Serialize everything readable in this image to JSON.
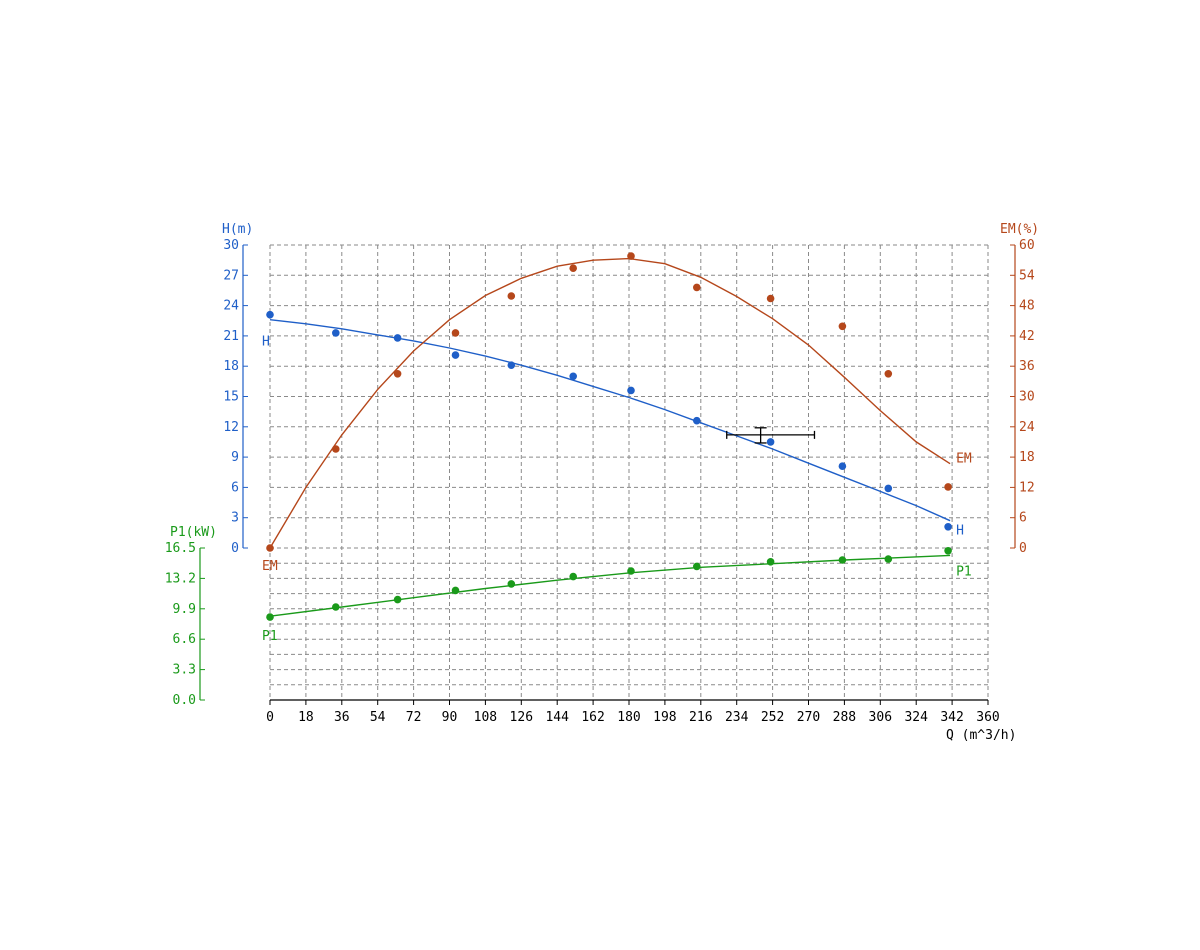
{
  "chart_data": {
    "type": "line",
    "x_axis": {
      "label": "Q (m^3/h)",
      "range": [
        0,
        360
      ],
      "ticks": [
        "0",
        "18",
        "36",
        "54",
        "72",
        "90",
        "108",
        "126",
        "144",
        "162",
        "180",
        "198",
        "216",
        "234",
        "252",
        "270",
        "288",
        "306",
        "324",
        "342",
        "360"
      ]
    },
    "axes": {
      "H": {
        "label": "H(m)",
        "range": [
          0,
          30
        ],
        "color": "#1f5fc8",
        "ticks": [
          "0",
          "3",
          "6",
          "9",
          "12",
          "15",
          "18",
          "21",
          "24",
          "27",
          "30"
        ]
      },
      "EM": {
        "label": "EM(%)",
        "range": [
          0,
          60
        ],
        "color": "#b5471b",
        "ticks": [
          "0",
          "6",
          "12",
          "18",
          "24",
          "30",
          "36",
          "42",
          "48",
          "54",
          "60"
        ]
      },
      "P1": {
        "label": "P1(kW)",
        "range": [
          0,
          16.5
        ],
        "color": "#1a9a1a",
        "ticks": [
          "0.0",
          "3.3",
          "6.6",
          "9.9",
          "13.2",
          "16.5"
        ]
      }
    },
    "grid": true,
    "series": [
      {
        "name": "H",
        "axis": "H",
        "color": "#1f5fc8",
        "points": [
          [
            0,
            23.1
          ],
          [
            33,
            21.3
          ],
          [
            64,
            20.8
          ],
          [
            93,
            19.1
          ],
          [
            121,
            18.1
          ],
          [
            152,
            17.0
          ],
          [
            181,
            15.6
          ],
          [
            214,
            12.6
          ],
          [
            251,
            10.5
          ],
          [
            287,
            8.1
          ],
          [
            310,
            5.9
          ],
          [
            340,
            2.1
          ]
        ],
        "curve": [
          [
            0,
            22.6
          ],
          [
            18,
            22.2
          ],
          [
            36,
            21.7
          ],
          [
            54,
            21.1
          ],
          [
            72,
            20.5
          ],
          [
            90,
            19.8
          ],
          [
            108,
            19.0
          ],
          [
            126,
            18.1
          ],
          [
            144,
            17.1
          ],
          [
            162,
            16.0
          ],
          [
            180,
            14.9
          ],
          [
            198,
            13.7
          ],
          [
            216,
            12.4
          ],
          [
            234,
            11.1
          ],
          [
            252,
            9.8
          ],
          [
            270,
            8.4
          ],
          [
            288,
            7.0
          ],
          [
            306,
            5.6
          ],
          [
            324,
            4.2
          ],
          [
            341,
            2.7
          ]
        ],
        "end_label": "H"
      },
      {
        "name": "EM",
        "axis": "EM",
        "color": "#b5471b",
        "points": [
          [
            0,
            0
          ],
          [
            33,
            19.6
          ],
          [
            64,
            34.5
          ],
          [
            93,
            42.6
          ],
          [
            121,
            49.9
          ],
          [
            152,
            55.4
          ],
          [
            181,
            57.8
          ],
          [
            214,
            51.6
          ],
          [
            251,
            49.4
          ],
          [
            287,
            43.9
          ],
          [
            310,
            34.5
          ],
          [
            340,
            12.1
          ]
        ],
        "curve": [
          [
            0,
            0
          ],
          [
            18,
            12.0
          ],
          [
            36,
            22.4
          ],
          [
            54,
            31.4
          ],
          [
            72,
            39.0
          ],
          [
            90,
            45.2
          ],
          [
            108,
            50.0
          ],
          [
            126,
            53.4
          ],
          [
            144,
            55.8
          ],
          [
            162,
            57.0
          ],
          [
            180,
            57.3
          ],
          [
            198,
            56.3
          ],
          [
            216,
            53.6
          ],
          [
            234,
            49.8
          ],
          [
            252,
            45.4
          ],
          [
            270,
            40.2
          ],
          [
            288,
            33.8
          ],
          [
            306,
            27.2
          ],
          [
            324,
            21.0
          ],
          [
            341,
            16.7
          ]
        ],
        "end_label": "EM"
      },
      {
        "name": "P1",
        "axis": "P1",
        "color": "#1a9a1a",
        "points": [
          [
            0,
            9.0
          ],
          [
            33,
            10.1
          ],
          [
            64,
            10.9
          ],
          [
            93,
            11.9
          ],
          [
            121,
            12.6
          ],
          [
            152,
            13.4
          ],
          [
            181,
            14.0
          ],
          [
            214,
            14.5
          ],
          [
            251,
            15.0
          ],
          [
            287,
            15.2
          ],
          [
            310,
            15.3
          ],
          [
            340,
            16.2
          ]
        ],
        "curve": [
          [
            0,
            9.1
          ],
          [
            36,
            10.1
          ],
          [
            72,
            11.1
          ],
          [
            108,
            12.1
          ],
          [
            144,
            13.0
          ],
          [
            180,
            13.8
          ],
          [
            216,
            14.4
          ],
          [
            252,
            14.8
          ],
          [
            288,
            15.2
          ],
          [
            341,
            15.7
          ]
        ],
        "end_label": "P1"
      }
    ],
    "duty_point": {
      "q": 246,
      "h": 11.2,
      "q_range": [
        229,
        273
      ],
      "h_range": [
        10.4,
        11.9
      ],
      "color": "#000000"
    }
  }
}
